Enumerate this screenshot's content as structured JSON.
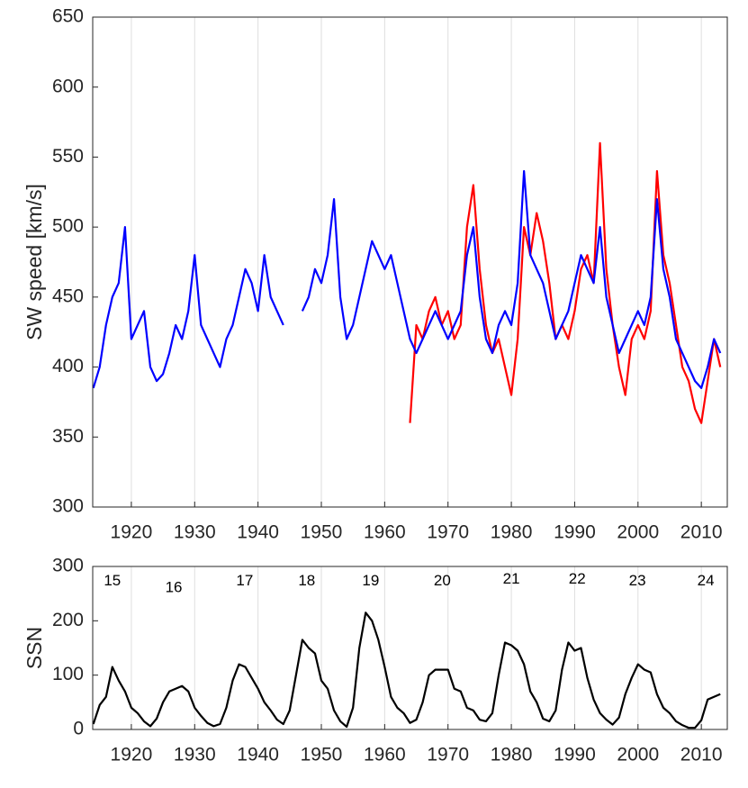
{
  "chart_data": [
    {
      "type": "line",
      "ylabel": "SW speed [km/s]",
      "x": [
        1914,
        1915,
        1916,
        1917,
        1918,
        1919,
        1920,
        1921,
        1922,
        1923,
        1924,
        1925,
        1926,
        1927,
        1928,
        1929,
        1930,
        1931,
        1932,
        1933,
        1934,
        1935,
        1936,
        1937,
        1938,
        1939,
        1940,
        1941,
        1942,
        1943,
        1944,
        1945,
        1946,
        1947,
        1948,
        1949,
        1950,
        1951,
        1952,
        1953,
        1954,
        1955,
        1956,
        1957,
        1958,
        1959,
        1960,
        1961,
        1962,
        1963,
        1964,
        1965,
        1966,
        1967,
        1968,
        1969,
        1970,
        1971,
        1972,
        1973,
        1974,
        1975,
        1976,
        1977,
        1978,
        1979,
        1980,
        1981,
        1982,
        1983,
        1984,
        1985,
        1986,
        1987,
        1988,
        1989,
        1990,
        1991,
        1992,
        1993,
        1994,
        1995,
        1996,
        1997,
        1998,
        1999,
        2000,
        2001,
        2002,
        2003,
        2004,
        2005,
        2006,
        2007,
        2008,
        2009,
        2010,
        2011,
        2012,
        2013
      ],
      "series": [
        {
          "color": "#ff0000",
          "values": [
            null,
            null,
            null,
            null,
            null,
            null,
            null,
            null,
            null,
            null,
            null,
            null,
            null,
            null,
            null,
            null,
            null,
            null,
            null,
            null,
            null,
            null,
            null,
            null,
            null,
            null,
            null,
            null,
            null,
            null,
            null,
            null,
            null,
            null,
            null,
            null,
            null,
            null,
            null,
            null,
            null,
            null,
            null,
            null,
            null,
            null,
            null,
            null,
            null,
            null,
            360,
            430,
            420,
            440,
            450,
            430,
            440,
            420,
            430,
            500,
            530,
            470,
            430,
            410,
            420,
            400,
            380,
            420,
            500,
            480,
            510,
            490,
            460,
            420,
            430,
            420,
            440,
            470,
            480,
            460,
            560,
            470,
            430,
            400,
            380,
            420,
            430,
            420,
            440,
            540,
            480,
            460,
            430,
            400,
            390,
            370,
            360,
            390,
            420,
            400
          ]
        },
        {
          "color": "#0000ff",
          "values": [
            385,
            400,
            430,
            450,
            460,
            500,
            420,
            430,
            440,
            400,
            390,
            395,
            410,
            430,
            420,
            440,
            480,
            430,
            420,
            410,
            400,
            420,
            430,
            450,
            470,
            460,
            440,
            480,
            450,
            440,
            430,
            null,
            null,
            440,
            450,
            470,
            460,
            480,
            520,
            450,
            420,
            430,
            450,
            470,
            490,
            480,
            470,
            480,
            460,
            440,
            420,
            410,
            420,
            430,
            440,
            430,
            420,
            430,
            440,
            480,
            500,
            450,
            420,
            410,
            430,
            440,
            430,
            460,
            540,
            480,
            470,
            460,
            440,
            420,
            430,
            440,
            460,
            480,
            470,
            460,
            500,
            450,
            430,
            410,
            420,
            430,
            440,
            430,
            450,
            520,
            470,
            450,
            420,
            410,
            400,
            390,
            385,
            400,
            420,
            410
          ]
        }
      ],
      "xlim": [
        1913.9,
        2014.1
      ],
      "xticks": [
        1920,
        1930,
        1940,
        1950,
        1960,
        1970,
        1980,
        1990,
        2000,
        2010
      ],
      "ylim": [
        300,
        650
      ],
      "yticks": [
        300,
        350,
        400,
        450,
        500,
        550,
        600,
        650
      ],
      "grid": "x"
    },
    {
      "type": "line",
      "ylabel": "SSN",
      "x": [
        1914,
        1915,
        1916,
        1917,
        1918,
        1919,
        1920,
        1921,
        1922,
        1923,
        1924,
        1925,
        1926,
        1927,
        1928,
        1929,
        1930,
        1931,
        1932,
        1933,
        1934,
        1935,
        1936,
        1937,
        1938,
        1939,
        1940,
        1941,
        1942,
        1943,
        1944,
        1945,
        1946,
        1947,
        1948,
        1949,
        1950,
        1951,
        1952,
        1953,
        1954,
        1955,
        1956,
        1957,
        1958,
        1959,
        1960,
        1961,
        1962,
        1963,
        1964,
        1965,
        1966,
        1967,
        1968,
        1969,
        1970,
        1971,
        1972,
        1973,
        1974,
        1975,
        1976,
        1977,
        1978,
        1979,
        1980,
        1981,
        1982,
        1983,
        1984,
        1985,
        1986,
        1987,
        1988,
        1989,
        1990,
        1991,
        1992,
        1993,
        1994,
        1995,
        1996,
        1997,
        1998,
        1999,
        2000,
        2001,
        2002,
        2003,
        2004,
        2005,
        2006,
        2007,
        2008,
        2009,
        2010,
        2011,
        2012,
        2013
      ],
      "series": [
        {
          "color": "#000000",
          "values": [
            10,
            45,
            60,
            115,
            90,
            70,
            40,
            30,
            15,
            6,
            20,
            50,
            70,
            75,
            80,
            70,
            40,
            25,
            12,
            6,
            10,
            40,
            90,
            120,
            115,
            95,
            75,
            50,
            35,
            18,
            10,
            35,
            100,
            165,
            150,
            140,
            90,
            75,
            35,
            15,
            5,
            40,
            150,
            215,
            200,
            165,
            115,
            60,
            40,
            30,
            12,
            18,
            50,
            100,
            110,
            110,
            110,
            75,
            70,
            40,
            35,
            18,
            15,
            30,
            100,
            160,
            155,
            145,
            120,
            70,
            50,
            20,
            15,
            35,
            110,
            160,
            145,
            150,
            95,
            55,
            30,
            18,
            9,
            22,
            65,
            95,
            120,
            110,
            105,
            65,
            40,
            30,
            15,
            8,
            3,
            3,
            17,
            55,
            60,
            65
          ]
        }
      ],
      "xlim": [
        1913.9,
        2014.1
      ],
      "xticks": [
        1920,
        1930,
        1940,
        1950,
        1960,
        1970,
        1980,
        1990,
        2000,
        2010
      ],
      "ylim": [
        0,
        300
      ],
      "yticks": [
        0,
        100,
        200,
        300
      ],
      "grid": "x",
      "annotations": [
        {
          "text": "15",
          "x": 1917.0,
          "y": 273
        },
        {
          "text": "16",
          "x": 1926.7,
          "y": 260
        },
        {
          "text": "17",
          "x": 1937.9,
          "y": 273
        },
        {
          "text": "18",
          "x": 1947.7,
          "y": 273
        },
        {
          "text": "19",
          "x": 1957.8,
          "y": 273
        },
        {
          "text": "20",
          "x": 1969.1,
          "y": 273
        },
        {
          "text": "21",
          "x": 1980.0,
          "y": 276
        },
        {
          "text": "22",
          "x": 1990.4,
          "y": 276
        },
        {
          "text": "23",
          "x": 1999.9,
          "y": 273
        },
        {
          "text": "24",
          "x": 2010.7,
          "y": 273
        }
      ]
    }
  ]
}
